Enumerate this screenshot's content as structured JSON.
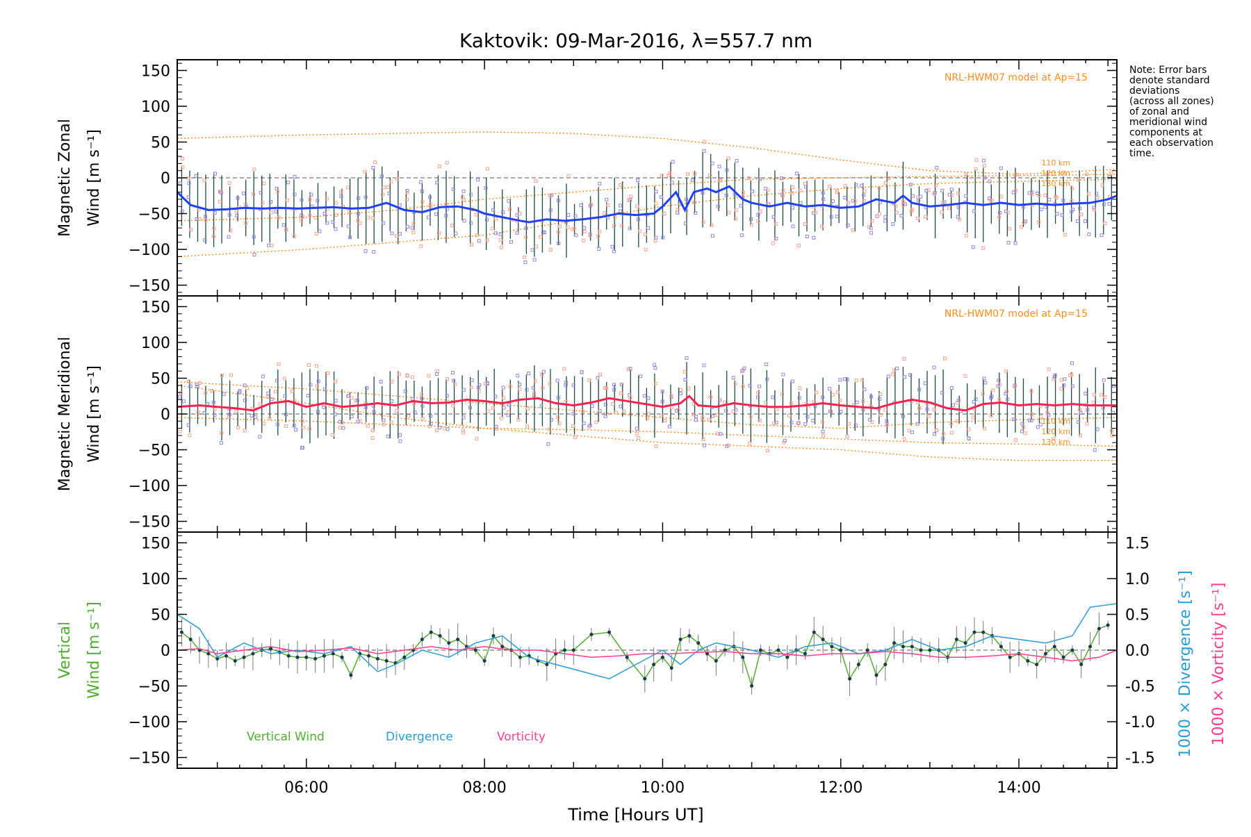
{
  "title": "Kaktovik: 09-Mar-2016, λ=557.7 nm",
  "note_lines": [
    "Note: Error bars",
    "denote standard",
    "deviations",
    "(across all zones)",
    "of zonal and",
    "meridional wind",
    "components at",
    "each observation",
    "time."
  ],
  "colors": {
    "axis": "#000000",
    "model": "#ff8c1a",
    "scatter_zonal": "#8f86e0",
    "scatter_meridional": "#ffa08a",
    "zonal_mean": "#1f3fff",
    "meridional_mean": "#ff2050",
    "vertical": "#4caf2a",
    "divergence": "#2a9bd8",
    "vorticity": "#ff3d8a",
    "errbar": "#1a4a3a"
  },
  "chart_data": [
    {
      "type": "line",
      "panel": "zonal",
      "ylabel_line1": "Magnetic Zonal",
      "ylabel_line2": "Wind [m s⁻¹]",
      "ylim": [
        -165,
        165
      ],
      "yticks": [
        150,
        100,
        50,
        0,
        -50,
        -100,
        -150
      ],
      "xlim": [
        4.55,
        15.1
      ],
      "xticks": [
        "06:00",
        "08:00",
        "10:00",
        "12:00",
        "14:00"
      ],
      "model_label": "NRL-HWM07 model at Ap=15",
      "model_altitudes": [
        "110 km",
        "120 km",
        "130 km"
      ],
      "mean_series": {
        "x": [
          4.55,
          4.7,
          4.9,
          5.1,
          5.3,
          5.5,
          5.7,
          5.9,
          6.1,
          6.3,
          6.5,
          6.7,
          6.9,
          7.1,
          7.3,
          7.5,
          7.7,
          7.9,
          8.0,
          8.2,
          8.4,
          8.5,
          8.7,
          8.9,
          9.1,
          9.3,
          9.5,
          9.7,
          9.9,
          10.0,
          10.15,
          10.25,
          10.35,
          10.5,
          10.6,
          10.75,
          10.9,
          11.0,
          11.2,
          11.4,
          11.6,
          11.8,
          12.0,
          12.2,
          12.4,
          12.6,
          12.7,
          12.8,
          13.0,
          13.2,
          13.4,
          13.6,
          13.8,
          14.0,
          14.2,
          14.4,
          14.6,
          14.8,
          15.0,
          15.1
        ],
        "y": [
          -20,
          -38,
          -45,
          -44,
          -42,
          -43,
          -42,
          -43,
          -42,
          -41,
          -43,
          -42,
          -35,
          -45,
          -48,
          -41,
          -40,
          -45,
          -50,
          -55,
          -60,
          -62,
          -58,
          -60,
          -58,
          -55,
          -50,
          -52,
          -50,
          -40,
          -20,
          -45,
          -20,
          -15,
          -20,
          -12,
          -30,
          -35,
          -40,
          -35,
          -40,
          -38,
          -42,
          -40,
          -30,
          -35,
          -25,
          -35,
          -40,
          -38,
          -35,
          -38,
          -35,
          -38,
          -36,
          -38,
          -36,
          -35,
          -30,
          -25
        ]
      },
      "model_curves": [
        {
          "label": "110 km",
          "x": [
            4.55,
            6,
            7,
            8,
            9,
            10,
            11,
            12,
            13,
            14,
            15.1
          ],
          "y": [
            55,
            60,
            62,
            64,
            62,
            55,
            42,
            25,
            10,
            5,
            12
          ]
        },
        {
          "label": "120 km",
          "x": [
            4.55,
            6,
            7,
            8,
            9,
            10,
            11,
            12,
            13,
            14,
            15.1
          ],
          "y": [
            -60,
            -55,
            -45,
            -30,
            -20,
            -10,
            -2,
            0,
            2,
            3,
            5
          ]
        },
        {
          "label": "130 km",
          "x": [
            4.55,
            6,
            7,
            8,
            9,
            10,
            11,
            12,
            13,
            14,
            15.1
          ],
          "y": [
            -110,
            -100,
            -90,
            -80,
            -60,
            -40,
            -25,
            -15,
            -8,
            -5,
            -2
          ]
        }
      ]
    },
    {
      "type": "line",
      "panel": "meridional",
      "ylabel_line1": "Magnetic Meridional",
      "ylabel_line2": "Wind [m s⁻¹]",
      "ylim": [
        -165,
        165
      ],
      "yticks": [
        150,
        100,
        50,
        0,
        -50,
        -100,
        -150
      ],
      "xlim": [
        4.55,
        15.1
      ],
      "model_label": "NRL-HWM07 model at Ap=15",
      "model_altitudes": [
        "110 km",
        "120 km",
        "130 km"
      ],
      "mean_series": {
        "x": [
          4.55,
          4.8,
          5.0,
          5.2,
          5.4,
          5.6,
          5.8,
          6.0,
          6.2,
          6.4,
          6.6,
          6.8,
          7.0,
          7.2,
          7.4,
          7.6,
          7.8,
          8.0,
          8.2,
          8.4,
          8.6,
          8.8,
          9.0,
          9.2,
          9.4,
          9.6,
          9.8,
          10.0,
          10.2,
          10.3,
          10.4,
          10.6,
          10.8,
          11.0,
          11.2,
          11.4,
          11.6,
          11.8,
          12.0,
          12.2,
          12.4,
          12.6,
          12.8,
          13.0,
          13.2,
          13.4,
          13.6,
          13.8,
          14.0,
          14.2,
          14.4,
          14.6,
          14.8,
          15.1
        ],
        "y": [
          10,
          12,
          10,
          8,
          5,
          15,
          18,
          10,
          15,
          10,
          12,
          15,
          12,
          18,
          15,
          16,
          20,
          18,
          15,
          20,
          22,
          15,
          12,
          16,
          22,
          18,
          14,
          10,
          15,
          25,
          12,
          10,
          15,
          12,
          10,
          10,
          12,
          15,
          12,
          10,
          8,
          15,
          20,
          16,
          8,
          5,
          14,
          16,
          12,
          14,
          12,
          14,
          12,
          12
        ]
      },
      "model_curves": [
        {
          "label": "110 km",
          "x": [
            4.55,
            6,
            7,
            8,
            9,
            10,
            11,
            12,
            13,
            14,
            15.1
          ],
          "y": [
            45,
            35,
            25,
            15,
            5,
            -5,
            -15,
            -20,
            -12,
            -8,
            -5
          ]
        },
        {
          "label": "120 km",
          "x": [
            4.55,
            6,
            7,
            8,
            9,
            10,
            11,
            12,
            13,
            14,
            15.1
          ],
          "y": [
            -5,
            -10,
            -15,
            -20,
            -22,
            -25,
            -30,
            -35,
            -40,
            -42,
            -45
          ]
        },
        {
          "label": "130 km",
          "x": [
            4.55,
            6,
            7,
            8,
            9,
            10,
            11,
            12,
            13,
            14,
            15.1
          ],
          "y": [
            40,
            15,
            -5,
            -20,
            -30,
            -40,
            -45,
            -50,
            -60,
            -65,
            -65
          ]
        }
      ]
    },
    {
      "type": "line",
      "panel": "vertical",
      "ylabel_line1": "Vertical",
      "ylabel_line2": "Wind [m s⁻¹]",
      "ylabel_right_1": "1000 × Divergence [s⁻¹]",
      "ylabel_right_2": "1000 × Vorticity [s⁻¹]",
      "ylim": [
        -165,
        165
      ],
      "yticks": [
        150,
        100,
        50,
        0,
        -50,
        -100,
        -150
      ],
      "y2lim": [
        -1.65,
        1.65
      ],
      "y2ticks": [
        "1.5",
        "1.0",
        "0.5",
        "0.0",
        "-0.5",
        "-1.0",
        "-1.5"
      ],
      "xlim": [
        4.55,
        15.1
      ],
      "xlabel": "Time [Hours UT]",
      "legend": [
        "Vertical Wind",
        "Divergence",
        "Vorticity"
      ],
      "series": [
        {
          "name": "Vertical Wind",
          "x": [
            4.6,
            4.7,
            4.8,
            4.9,
            5.0,
            5.1,
            5.2,
            5.3,
            5.4,
            5.5,
            5.6,
            5.7,
            5.8,
            5.9,
            6.0,
            6.1,
            6.2,
            6.3,
            6.4,
            6.5,
            6.6,
            6.7,
            6.8,
            6.9,
            7.0,
            7.1,
            7.2,
            7.3,
            7.4,
            7.5,
            7.6,
            7.7,
            7.8,
            7.9,
            8.0,
            8.1,
            8.2,
            8.3,
            8.4,
            8.5,
            8.6,
            8.7,
            8.8,
            8.9,
            9.0,
            9.2,
            9.4,
            9.6,
            9.8,
            9.9,
            10.0,
            10.1,
            10.2,
            10.3,
            10.4,
            10.5,
            10.6,
            10.7,
            10.8,
            10.9,
            11.0,
            11.1,
            11.2,
            11.3,
            11.4,
            11.5,
            11.6,
            11.7,
            11.8,
            11.9,
            12.0,
            12.1,
            12.2,
            12.3,
            12.4,
            12.5,
            12.6,
            12.7,
            12.8,
            12.9,
            13.0,
            13.1,
            13.2,
            13.3,
            13.4,
            13.5,
            13.6,
            13.7,
            13.8,
            13.9,
            14.0,
            14.1,
            14.2,
            14.3,
            14.4,
            14.5,
            14.6,
            14.7,
            14.8,
            14.9,
            15.0
          ],
          "y": [
            25,
            15,
            0,
            -5,
            -12,
            -8,
            -15,
            -10,
            -5,
            0,
            2,
            -3,
            -8,
            -10,
            -10,
            -12,
            -8,
            -5,
            -10,
            -35,
            -5,
            -8,
            -12,
            -15,
            -18,
            -10,
            0,
            15,
            25,
            20,
            10,
            15,
            5,
            0,
            -15,
            20,
            5,
            0,
            -10,
            -8,
            -15,
            -20,
            -5,
            0,
            0,
            22,
            25,
            -10,
            -40,
            -20,
            -10,
            -25,
            15,
            20,
            10,
            -5,
            -15,
            0,
            5,
            -10,
            -50,
            0,
            -5,
            0,
            -10,
            0,
            -5,
            25,
            15,
            5,
            0,
            -40,
            -20,
            0,
            -35,
            -20,
            10,
            5,
            5,
            0,
            0,
            0,
            -10,
            15,
            10,
            25,
            25,
            20,
            5,
            -10,
            -5,
            -15,
            -20,
            -5,
            5,
            -10,
            0,
            -20,
            5,
            30,
            35
          ]
        },
        {
          "name": "Divergence",
          "x": [
            4.55,
            4.8,
            5.0,
            5.3,
            5.6,
            5.9,
            6.2,
            6.5,
            6.8,
            7.0,
            7.3,
            7.6,
            7.9,
            8.2,
            8.5,
            8.8,
            9.1,
            9.4,
            9.7,
            10.0,
            10.2,
            10.4,
            10.6,
            10.8,
            11.0,
            11.3,
            11.6,
            11.9,
            12.2,
            12.5,
            12.8,
            13.1,
            13.4,
            13.7,
            14.0,
            14.3,
            14.6,
            14.8,
            15.1
          ],
          "y": [
            0.5,
            0.3,
            -0.1,
            0.1,
            -0.05,
            0.0,
            -0.05,
            0.05,
            -0.3,
            -0.2,
            0.0,
            -0.1,
            0.1,
            0.2,
            -0.1,
            -0.2,
            -0.3,
            -0.4,
            -0.2,
            0.0,
            -0.2,
            0.0,
            0.1,
            0.05,
            0.0,
            -0.1,
            0.05,
            0.1,
            -0.05,
            0.0,
            0.15,
            0.0,
            0.05,
            0.2,
            0.15,
            0.1,
            0.2,
            0.6,
            0.65
          ]
        },
        {
          "name": "Vorticity",
          "x": [
            4.55,
            4.8,
            5.0,
            5.3,
            5.6,
            5.9,
            6.2,
            6.5,
            6.8,
            7.1,
            7.4,
            7.7,
            8.0,
            8.3,
            8.6,
            8.9,
            9.2,
            9.5,
            9.8,
            10.1,
            10.4,
            10.7,
            11.0,
            11.3,
            11.6,
            11.9,
            12.2,
            12.5,
            12.8,
            13.1,
            13.4,
            13.7,
            14.0,
            14.3,
            14.6,
            14.9,
            15.1
          ],
          "y": [
            0.0,
            0.02,
            -0.05,
            0.0,
            0.05,
            -0.02,
            0.0,
            0.03,
            -0.05,
            0.0,
            0.05,
            0.0,
            0.05,
            0.0,
            0.0,
            -0.05,
            -0.1,
            -0.08,
            -0.05,
            -0.05,
            -0.03,
            -0.02,
            -0.05,
            -0.05,
            -0.08,
            -0.05,
            -0.05,
            -0.02,
            -0.05,
            -0.1,
            -0.1,
            -0.08,
            -0.05,
            -0.1,
            -0.15,
            -0.1,
            0.0
          ]
        }
      ]
    }
  ]
}
